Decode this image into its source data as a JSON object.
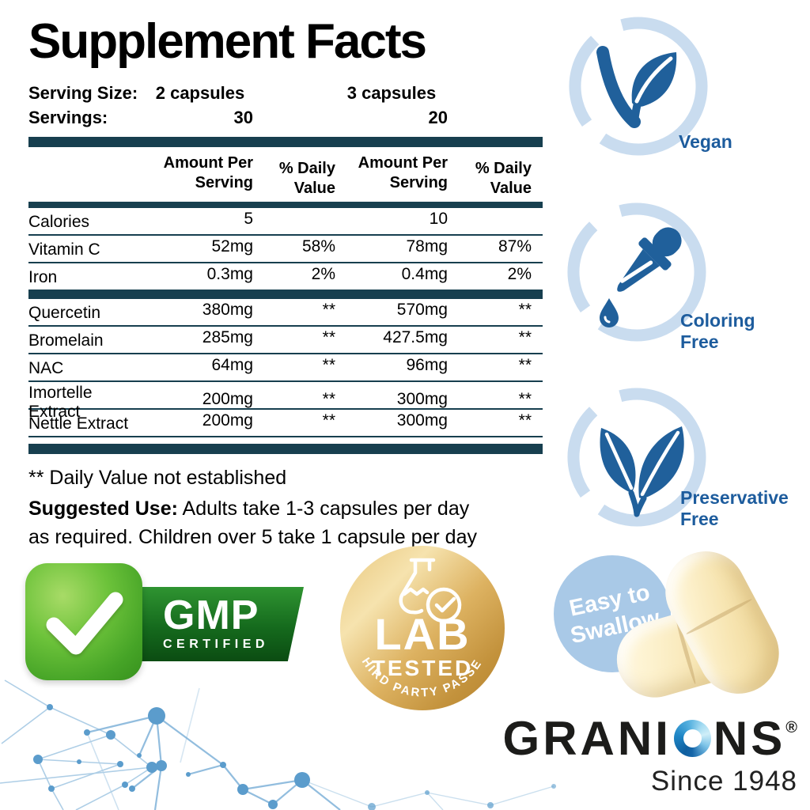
{
  "facts": {
    "title": "Supplement Facts",
    "serving": {
      "size_label": "Serving Size:",
      "servings_label": "Servings:",
      "size_option1": "2 capsules",
      "size_option2": "3 capsules",
      "servings_option1": "30",
      "servings_option2": "20"
    },
    "table": {
      "header": {
        "amount_line1": "Amount Per",
        "amount_line2": "Serving",
        "dv_line1": "% Daily",
        "dv_line2": "Value"
      },
      "rows": [
        {
          "name": "Calories",
          "amount1": "5",
          "dv1": "",
          "amount2": "10",
          "dv2": ""
        },
        {
          "name": "Vitamin C",
          "amount1": "52mg",
          "dv1": "58%",
          "amount2": "78mg",
          "dv2": "87%"
        },
        {
          "name": "Iron",
          "amount1": "0.3mg",
          "dv1": "2%",
          "amount2": "0.4mg",
          "dv2": "2%",
          "thick_bar_after": true
        },
        {
          "name": "Quercetin",
          "amount1": "380mg",
          "dv1": "**",
          "amount2": "570mg",
          "dv2": "**"
        },
        {
          "name": "Bromelain",
          "amount1": "285mg",
          "dv1": "**",
          "amount2": "427.5mg",
          "dv2": "**"
        },
        {
          "name": "NAC",
          "amount1": "64mg",
          "dv1": "**",
          "amount2": "96mg",
          "dv2": "**"
        },
        {
          "name": "Imortelle Extract",
          "amount1": "200mg",
          "dv1": "**",
          "amount2": "300mg",
          "dv2": "**"
        },
        {
          "name": "Nettle Extract",
          "amount1": "200mg",
          "dv1": "**",
          "amount2": "300mg",
          "dv2": "**"
        }
      ]
    },
    "footnote": "** Daily Value not established",
    "suggested_use": {
      "label": "Suggested Use:",
      "line1": "Adults take 1-3 capsules per day",
      "line2": "as required. Children over 5 take 1 capsule per day"
    }
  },
  "features": [
    {
      "icon": "vegan-leaf-icon",
      "lines": [
        "Vegan",
        ""
      ]
    },
    {
      "icon": "dropper-icon",
      "lines": [
        "Coloring",
        "Free"
      ]
    },
    {
      "icon": "leaves-icon",
      "lines": [
        "Preservative",
        "Free"
      ]
    }
  ],
  "seals": {
    "gmp": {
      "title": "GMP",
      "subtitle": "CERTIFIED",
      "icon": "green-checkmark-icon"
    },
    "lab": {
      "line1": "LAB",
      "line2": "TESTED",
      "curved_text": "THIRD PARTY PASSED",
      "icon": "flask-check-icon"
    },
    "easy_swallow": {
      "line1": "Easy to",
      "line2": "Swallow"
    }
  },
  "brand": {
    "name_prefix": "GRANI",
    "name_suffix": "NS",
    "registered_mark": "®",
    "tagline": "Since 1948"
  },
  "colors": {
    "teal_bar": "#173f4f",
    "feature_blue": "#20609b",
    "feature_label_blue": "#1d5c9d",
    "feature_arc_light_blue": "#c9dcef",
    "easy_circle_blue": "#a9c9e7",
    "gold": "#d8ab57",
    "gmp_green": "#46a427",
    "gmp_dark_green": "#0b4c12",
    "capsule_cream": "#f6e7be",
    "brand_ink": "#1c1c1a"
  }
}
